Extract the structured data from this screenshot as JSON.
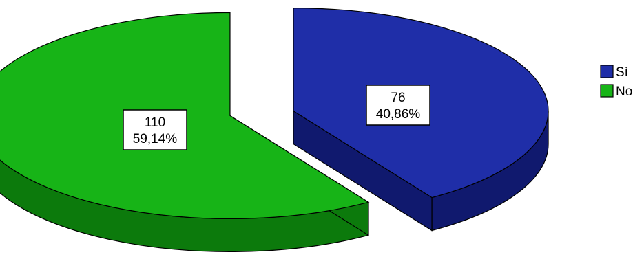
{
  "chart_data": {
    "type": "pie",
    "title": "",
    "slices": [
      {
        "label": "Sì",
        "count_label": "76",
        "percent_label": "40,86%",
        "value": 76,
        "percent": 40.86,
        "color": "#1f2ea8",
        "dark": "#10196e"
      },
      {
        "label": "No",
        "count_label": "110",
        "percent_label": "59,14%",
        "value": 110,
        "percent": 59.14,
        "color": "#17b417",
        "dark": "#0c7a0c"
      }
    ],
    "exploded": true,
    "legend_position": "right"
  }
}
